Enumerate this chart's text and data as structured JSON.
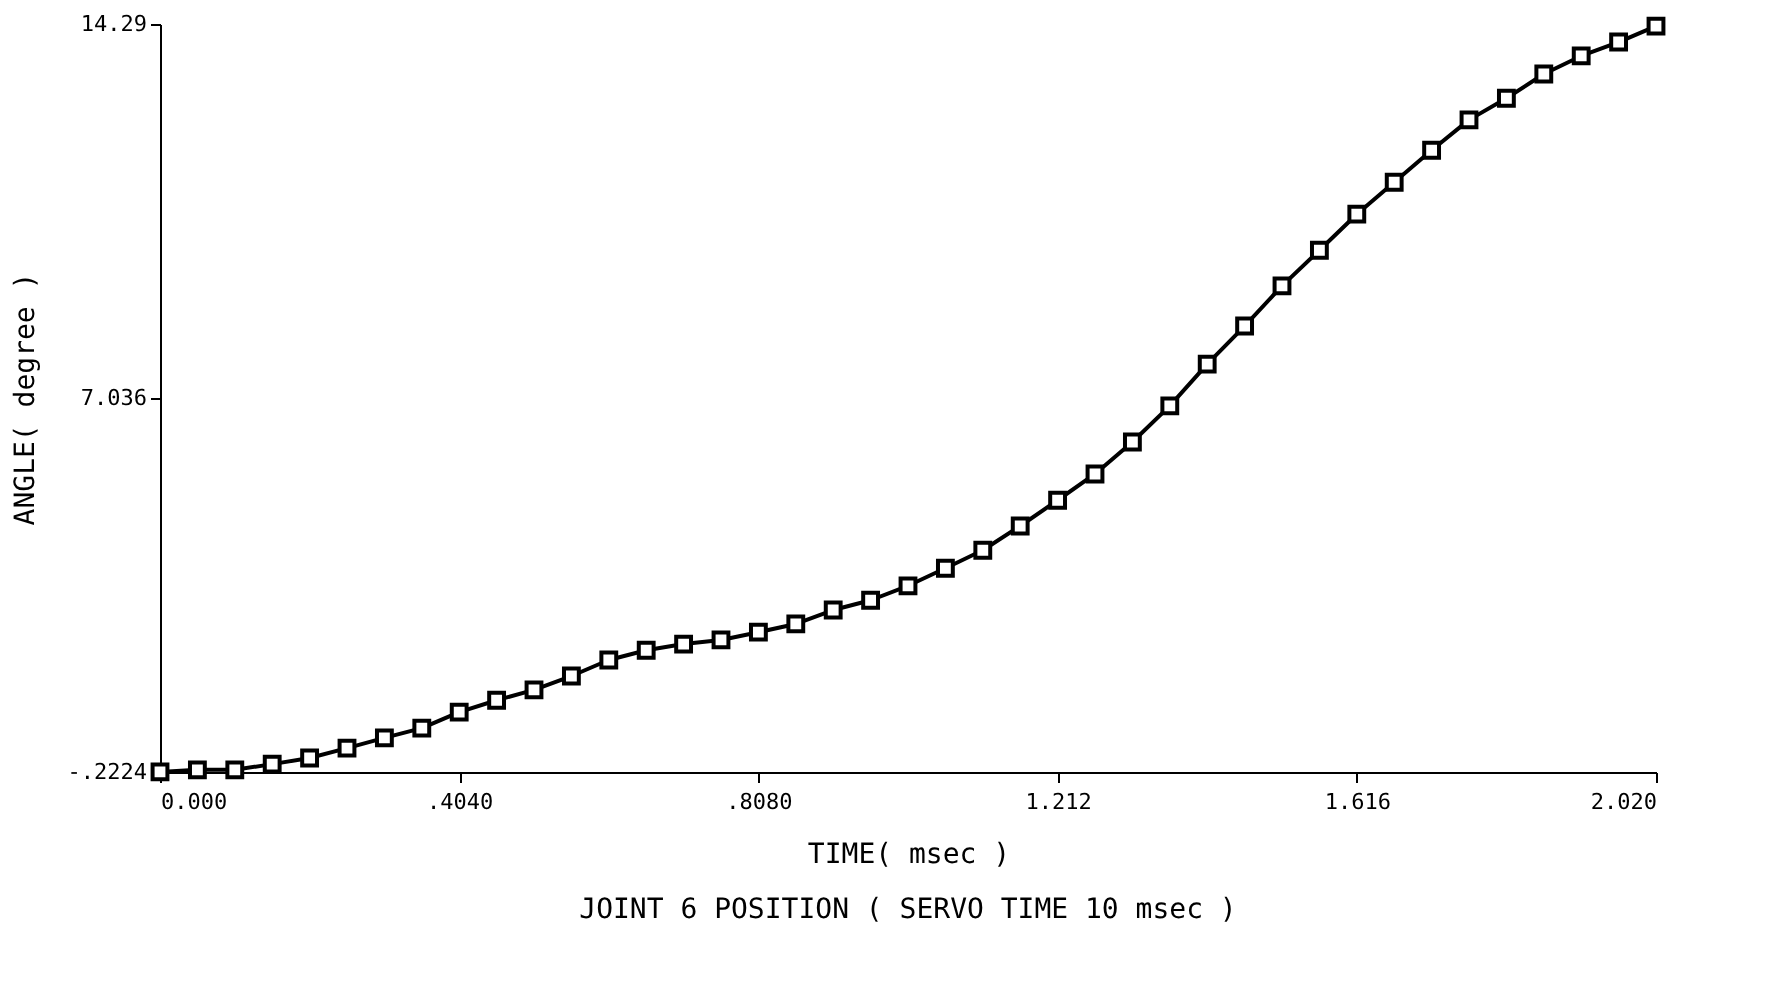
{
  "chart_data": {
    "type": "line",
    "title": "JOINT 6 POSITION ( SERVO TIME  10 msec )",
    "xlabel": "TIME( msec )",
    "ylabel": "ANGLE( degree )",
    "x": [
      0,
      0.0505,
      0.101,
      0.1515,
      0.202,
      0.2525,
      0.303,
      0.3535,
      0.404,
      0.4545,
      0.505,
      0.5555,
      0.606,
      0.6565,
      0.707,
      0.7575,
      0.808,
      0.8585,
      0.909,
      0.9595,
      1.01,
      1.0605,
      1.111,
      1.1615,
      1.212,
      1.2625,
      1.313,
      1.3635,
      1.414,
      1.4645,
      1.515,
      1.5655,
      1.616,
      1.6665,
      1.717,
      1.7675,
      1.818,
      1.8685,
      1.919,
      1.9695,
      2.02
    ],
    "series": [
      {
        "color": "#000000",
        "values": [
          -0.22,
          -0.18,
          -0.18,
          -0.07,
          0.05,
          0.24,
          0.44,
          0.63,
          0.94,
          1.17,
          1.37,
          1.64,
          1.95,
          2.14,
          2.26,
          2.34,
          2.49,
          2.65,
          2.92,
          3.11,
          3.39,
          3.73,
          4.08,
          4.55,
          5.05,
          5.56,
          6.18,
          6.88,
          7.69,
          8.43,
          9.21,
          9.9,
          10.6,
          11.22,
          11.84,
          12.43,
          12.85,
          13.32,
          13.67,
          13.94,
          14.25
        ]
      }
    ],
    "xlim": [
      0,
      2.02
    ],
    "xticks": [
      {
        "value": 0,
        "label": "0.000"
      },
      {
        "value": 0.404,
        "label": ".4040"
      },
      {
        "value": 0.808,
        "label": ".8080"
      },
      1.212,
      1.616,
      {
        "value": 2.02,
        "label": "2.020"
      }
    ],
    "ylim": [
      -0.2224,
      14.29
    ],
    "yticks": [
      {
        "value": -0.2224,
        "label": "-.2224"
      },
      7.036,
      14.29
    ],
    "marker": "square",
    "line_style": "solid",
    "grid": false
  }
}
